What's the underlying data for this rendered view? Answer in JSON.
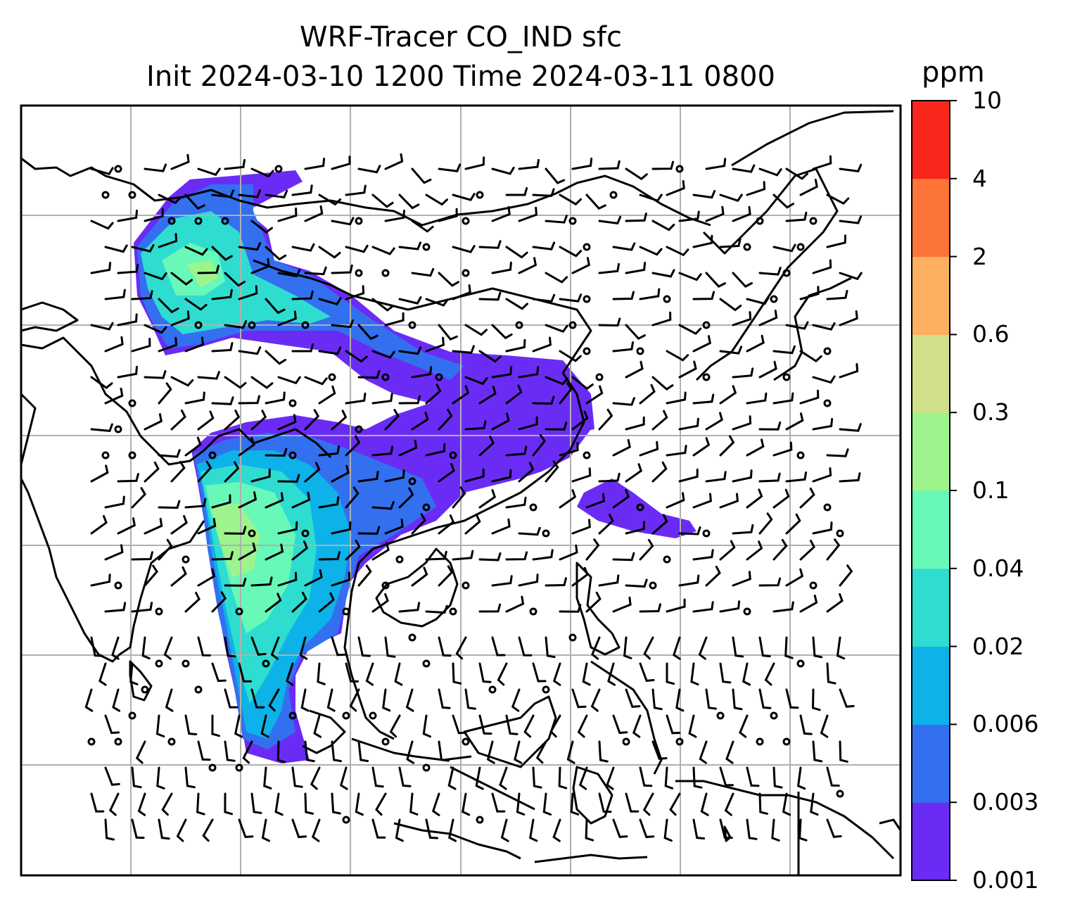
{
  "title": {
    "line1": "WRF-Tracer CO_IND sfc",
    "line2": "Init 2024-03-10 1200 Time 2024-03-11 0800"
  },
  "colorbar": {
    "unit": "ppm",
    "levels": [
      "0.001",
      "0.003",
      "0.006",
      "0.02",
      "0.04",
      "0.1",
      "0.3",
      "0.6",
      "2",
      "4",
      "10"
    ],
    "colors": [
      "#6a2cf5",
      "#3270f0",
      "#0cb2e8",
      "#2fdcd0",
      "#68f8b8",
      "#9ef48c",
      "#d0e08a",
      "#fcb060",
      "#fc7438",
      "#f9261b"
    ]
  },
  "map": {
    "gridlines": true,
    "coastline_color": "#000000",
    "grid_color": "#b0b0b0",
    "wind_barbs": true
  }
}
